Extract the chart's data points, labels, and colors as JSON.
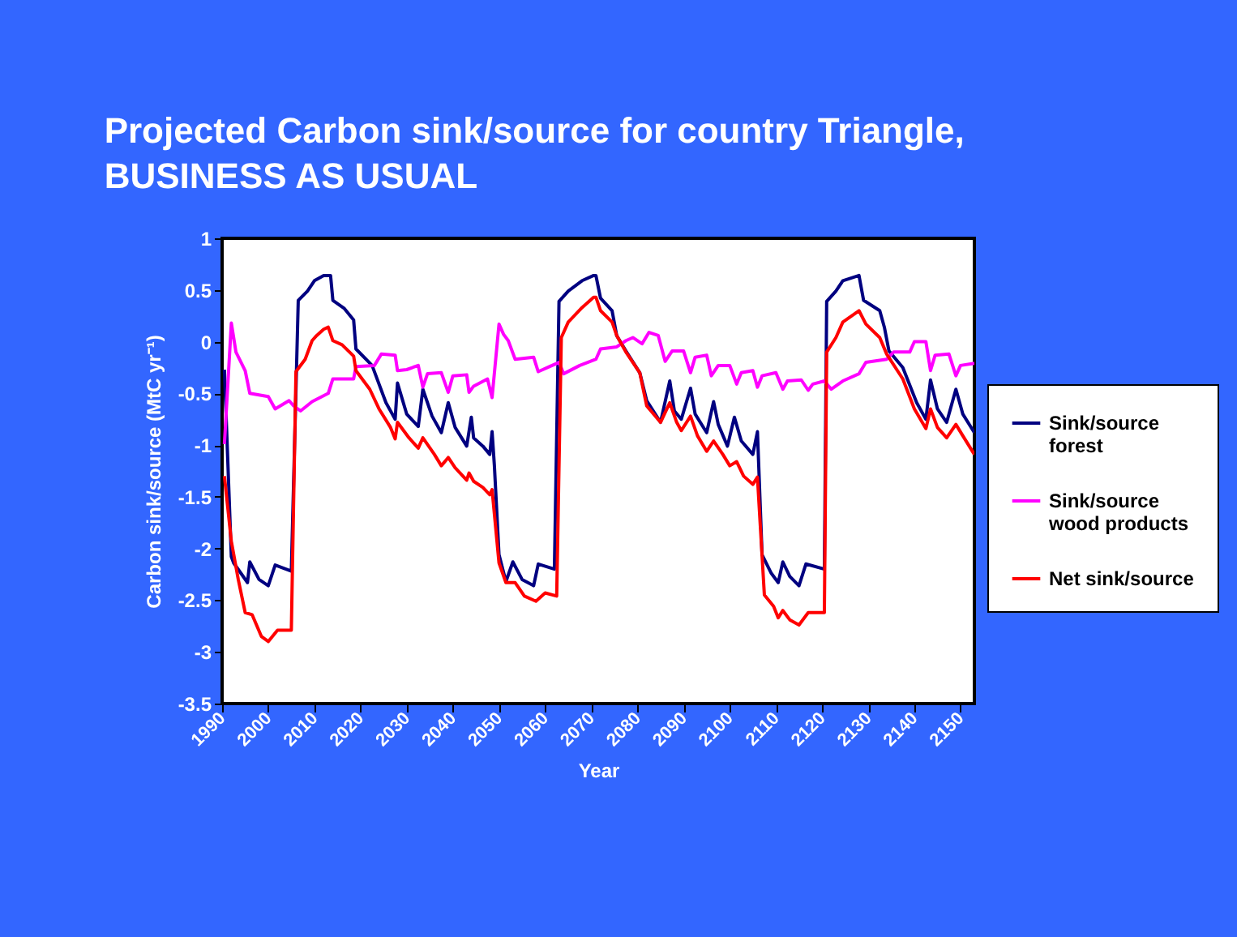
{
  "chart_data": {
    "type": "line",
    "title": "Projected Carbon sink/source for country Triangle, BUSINESS AS USUAL",
    "xlabel": "Year",
    "ylabel": "Carbon sink/source (MtC yr⁻¹)",
    "xlim": [
      1990,
      2153
    ],
    "xticks": [
      1990,
      2000,
      2010,
      2020,
      2030,
      2040,
      2050,
      2060,
      2070,
      2080,
      2090,
      2100,
      2110,
      2120,
      2130,
      2140,
      2150
    ],
    "ylim": [
      -3.5,
      1
    ],
    "yticks": [
      -3.5,
      -3,
      -2.5,
      -2,
      -1.5,
      -1,
      -0.5,
      0,
      0.5,
      1
    ],
    "grid": false,
    "legend": "right",
    "marker": "none",
    "line_style": "solid",
    "series": [
      {
        "name": "Sink/source forest",
        "color": "#000080",
        "x": [
          1990.5,
          1992,
          1992.5,
          1995.5,
          1996,
          1998,
          2000,
          2001.5,
          2005,
          2006.5,
          2008.5,
          2010,
          2012,
          2013.5,
          2014,
          2016.5,
          2018.5,
          2019,
          2022.5,
          2025.5,
          2027.5,
          2028,
          2030,
          2032.5,
          2033.5,
          2035.5,
          2037.5,
          2039,
          2040.5,
          2043,
          2044,
          2044.5,
          2046.5,
          2048,
          2048.5,
          2049,
          2050,
          2051.5,
          2053,
          2055,
          2057.5,
          2058.5,
          2062,
          2063,
          2065,
          2068,
          2070.5,
          2071,
          2072,
          2074.5,
          2075.5,
          2077.5,
          2080.5,
          2082,
          2085,
          2087,
          2088,
          2089.5,
          2091.5,
          2092.5,
          2095,
          2096.5,
          2097.5,
          2099.5,
          2101,
          2102.5,
          2105,
          2106,
          2107,
          2109,
          2110.5,
          2111.5,
          2113,
          2115,
          2116.5,
          2120.5,
          2121,
          2123,
          2124.5,
          2128,
          2129,
          2132.5,
          2133.5,
          2134.5,
          2137.5,
          2140.5,
          2142.5,
          2143.5,
          2145,
          2147,
          2149,
          2150.5,
          2153
        ],
        "values": [
          -0.27,
          -2.08,
          -2.14,
          -2.33,
          -2.13,
          -2.3,
          -2.36,
          -2.16,
          -2.22,
          0.4,
          0.49,
          0.59,
          0.64,
          0.64,
          0.4,
          0.32,
          0.21,
          -0.07,
          -0.23,
          -0.59,
          -0.75,
          -0.4,
          -0.7,
          -0.82,
          -0.46,
          -0.72,
          -0.88,
          -0.59,
          -0.83,
          -1.01,
          -0.73,
          -0.93,
          -1.01,
          -1.09,
          -0.87,
          -1.2,
          -2.06,
          -2.32,
          -2.13,
          -2.3,
          -2.36,
          -2.15,
          -2.2,
          0.39,
          0.49,
          0.59,
          0.64,
          0.64,
          0.42,
          0.3,
          0.06,
          -0.09,
          -0.3,
          -0.57,
          -0.78,
          -0.38,
          -0.67,
          -0.75,
          -0.45,
          -0.7,
          -0.88,
          -0.58,
          -0.8,
          -1.01,
          -0.73,
          -0.96,
          -1.09,
          -0.87,
          -2.06,
          -2.24,
          -2.33,
          -2.13,
          -2.27,
          -2.36,
          -2.15,
          -2.2,
          0.39,
          0.49,
          0.59,
          0.64,
          0.4,
          0.3,
          0.14,
          -0.09,
          -0.25,
          -0.59,
          -0.75,
          -0.37,
          -0.65,
          -0.78,
          -0.46,
          -0.7,
          -0.88
        ]
      },
      {
        "name": "Sink/source wood products",
        "color": "#ff00ff",
        "x": [
          1990.5,
          1992,
          1993,
          1995,
          1996,
          2000,
          2001.5,
          2004.5,
          2005.5,
          2007,
          2009.5,
          2013,
          2014,
          2018.5,
          2019,
          2023,
          2024.5,
          2027.5,
          2028,
          2030,
          2032.5,
          2033.5,
          2034.5,
          2037.5,
          2039,
          2040,
          2043,
          2043.5,
          2044.5,
          2047.5,
          2048.5,
          2050,
          2051,
          2052,
          2053.5,
          2057.5,
          2058.5,
          2061,
          2063,
          2064,
          2067.5,
          2071,
          2072,
          2075.5,
          2077.5,
          2079,
          2081,
          2082.5,
          2084.5,
          2086,
          2087.5,
          2090,
          2091.5,
          2092.5,
          2095,
          2096,
          2097.5,
          2100,
          2101.5,
          2102.5,
          2105,
          2106,
          2107,
          2110,
          2111.5,
          2112.5,
          2115.5,
          2117,
          2118,
          2120.5,
          2122,
          2124.5,
          2128,
          2129.5,
          2134,
          2135.5,
          2139,
          2140,
          2142.5,
          2143.5,
          2144.5,
          2147.5,
          2149,
          2150,
          2153
        ],
        "values": [
          -0.99,
          0.18,
          -0.1,
          -0.28,
          -0.5,
          -0.53,
          -0.65,
          -0.57,
          -0.62,
          -0.67,
          -0.58,
          -0.5,
          -0.36,
          -0.36,
          -0.24,
          -0.23,
          -0.12,
          -0.13,
          -0.28,
          -0.27,
          -0.23,
          -0.44,
          -0.31,
          -0.3,
          -0.49,
          -0.33,
          -0.32,
          -0.49,
          -0.43,
          -0.36,
          -0.54,
          0.17,
          0.07,
          0.01,
          -0.17,
          -0.15,
          -0.29,
          -0.24,
          -0.2,
          -0.31,
          -0.23,
          -0.17,
          -0.07,
          -0.05,
          0.01,
          0.04,
          -0.02,
          0.09,
          0.06,
          -0.19,
          -0.09,
          -0.09,
          -0.3,
          -0.15,
          -0.13,
          -0.33,
          -0.23,
          -0.23,
          -0.41,
          -0.3,
          -0.28,
          -0.44,
          -0.33,
          -0.3,
          -0.46,
          -0.38,
          -0.37,
          -0.47,
          -0.41,
          -0.38,
          -0.46,
          -0.38,
          -0.31,
          -0.2,
          -0.17,
          -0.1,
          -0.1,
          0.0,
          0.0,
          -0.28,
          -0.13,
          -0.12,
          -0.33,
          -0.23,
          -0.21
        ]
      },
      {
        "name": "Net sink/source",
        "color": "#ff0000",
        "x": [
          1990.5,
          1992,
          1993.5,
          1995,
          1996.5,
          1998.5,
          2000,
          2002,
          2005,
          2006,
          2008,
          2009.5,
          2010.5,
          2012,
          2013,
          2014,
          2016,
          2018.5,
          2019,
          2022,
          2024,
          2026.5,
          2027.5,
          2028,
          2030.5,
          2032.5,
          2033.5,
          2036,
          2037.5,
          2039,
          2040.5,
          2043,
          2043.5,
          2044.5,
          2046.5,
          2048,
          2048.5,
          2050,
          2051.5,
          2053.5,
          2055.5,
          2058,
          2060,
          2062.5,
          2063.5,
          2065,
          2068,
          2070.5,
          2071,
          2072,
          2074.5,
          2075.5,
          2077.5,
          2080.5,
          2082,
          2085,
          2087,
          2088.5,
          2089.5,
          2091.5,
          2093,
          2095,
          2096.5,
          2098.5,
          2100,
          2101.5,
          2103,
          2105,
          2106,
          2107.5,
          2109.5,
          2110.5,
          2111.5,
          2113,
          2115,
          2117,
          2120.5,
          2121,
          2123,
          2124.5,
          2128,
          2129.5,
          2132.5,
          2134,
          2137.5,
          2140,
          2142.5,
          2143.5,
          2145,
          2147,
          2149,
          2150.5,
          2153
        ],
        "values": [
          -1.3,
          -1.93,
          -2.3,
          -2.62,
          -2.64,
          -2.85,
          -2.9,
          -2.79,
          -2.79,
          -0.29,
          -0.17,
          0.01,
          0.06,
          0.12,
          0.14,
          0.01,
          -0.03,
          -0.14,
          -0.28,
          -0.46,
          -0.65,
          -0.83,
          -0.94,
          -0.78,
          -0.93,
          -1.03,
          -0.93,
          -1.09,
          -1.2,
          -1.12,
          -1.22,
          -1.34,
          -1.27,
          -1.35,
          -1.41,
          -1.48,
          -1.43,
          -2.14,
          -2.33,
          -2.33,
          -2.46,
          -2.51,
          -2.43,
          -2.46,
          0.04,
          0.19,
          0.33,
          0.43,
          0.43,
          0.3,
          0.19,
          0.06,
          -0.1,
          -0.3,
          -0.62,
          -0.78,
          -0.59,
          -0.78,
          -0.86,
          -0.72,
          -0.91,
          -1.06,
          -0.96,
          -1.09,
          -1.2,
          -1.16,
          -1.3,
          -1.38,
          -1.31,
          -2.45,
          -2.56,
          -2.67,
          -2.6,
          -2.69,
          -2.74,
          -2.62,
          -2.62,
          -0.1,
          0.04,
          0.19,
          0.3,
          0.17,
          0.04,
          -0.12,
          -0.36,
          -0.65,
          -0.84,
          -0.65,
          -0.83,
          -0.93,
          -0.8,
          -0.91,
          -1.09
        ]
      }
    ]
  }
}
